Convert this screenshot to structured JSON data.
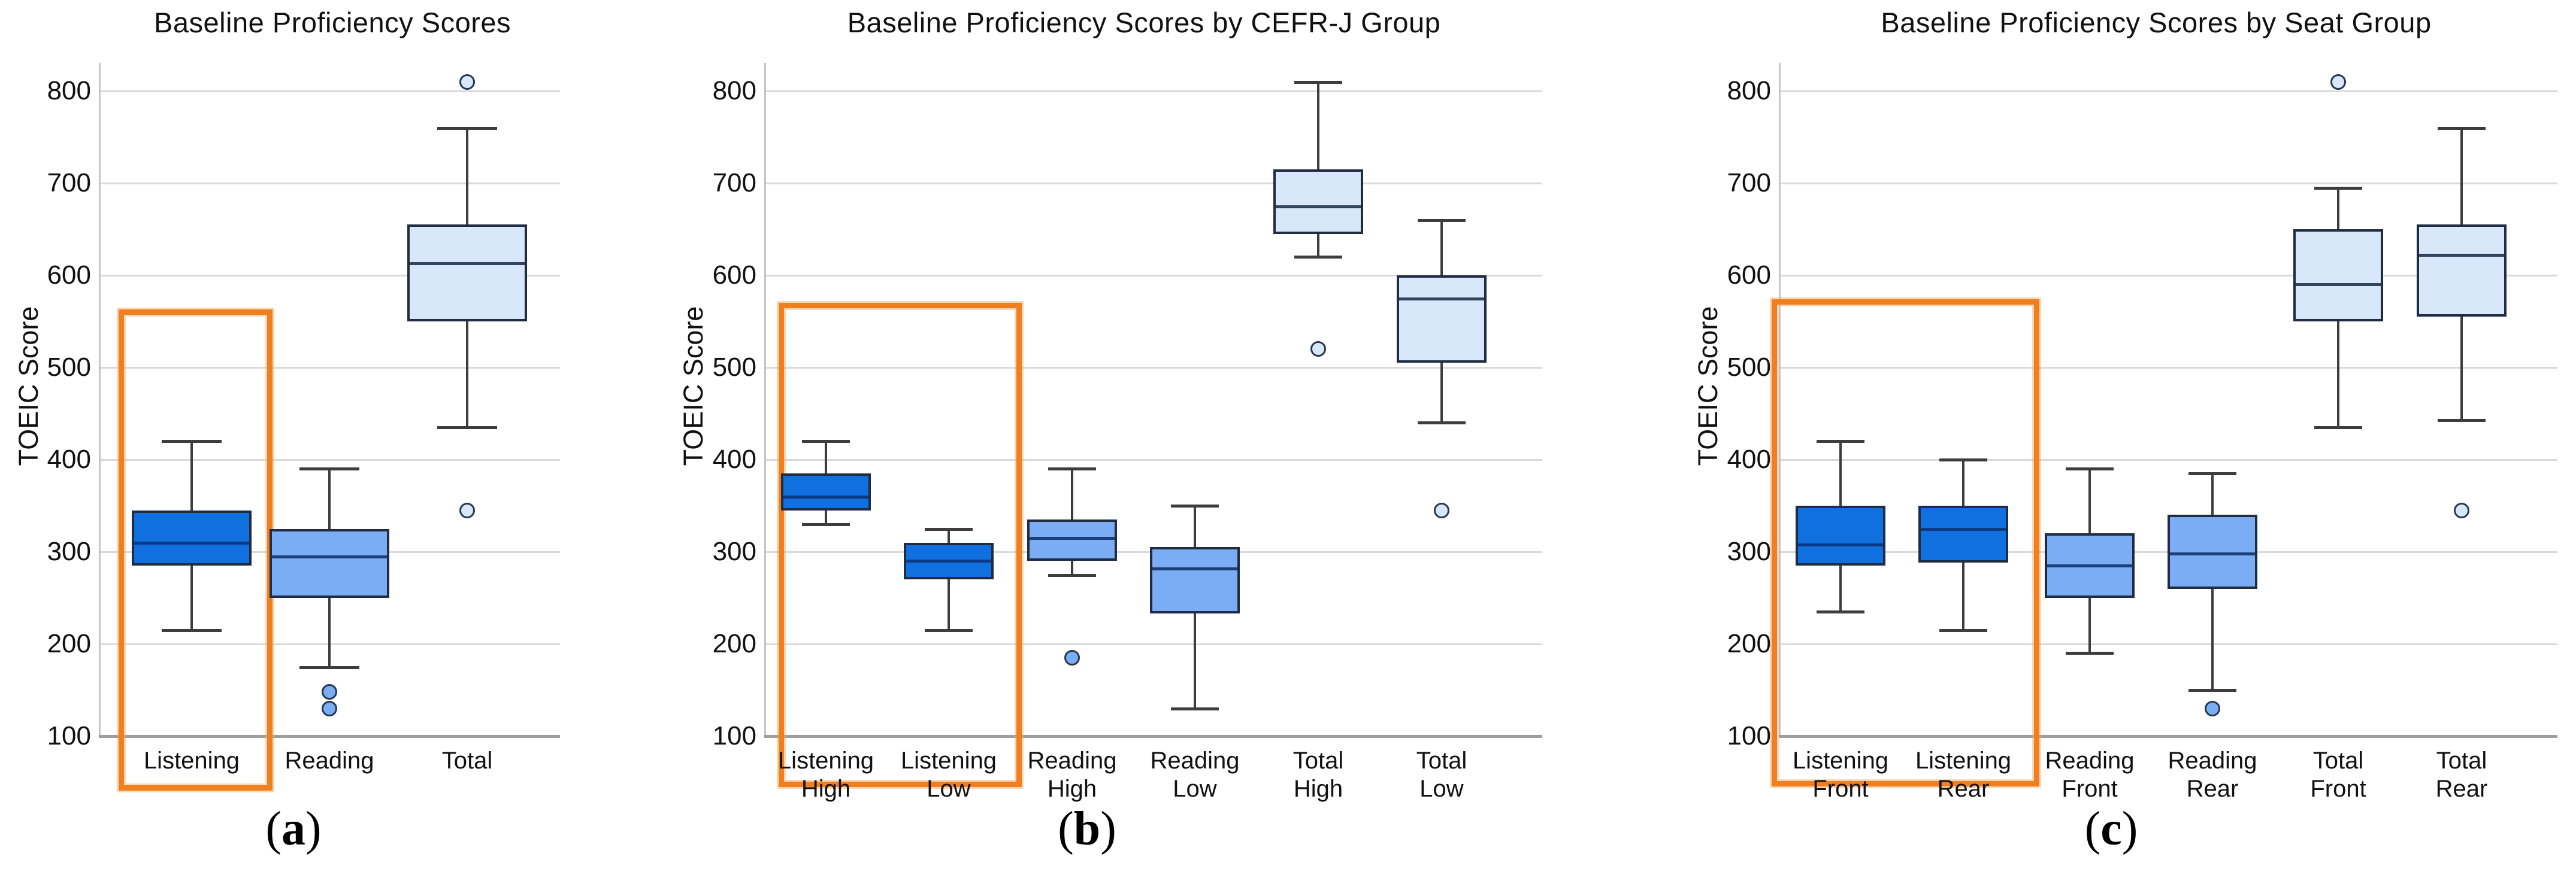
{
  "figure": {
    "background": "#ffffff",
    "colors": {
      "listening_fill": "#1070e0",
      "reading_fill": "#7aadf4",
      "total_fill": "#d8e7fa",
      "box_border": "#202c42",
      "median_listening": "#0a3a85",
      "median_reading": "#1c3f7a",
      "median_total": "#31465e",
      "whisker": "#3d3d3d",
      "gridline": "#d9d9d9",
      "axis_bottom": "#9e9e9e",
      "axis_left": "#c4c4c4",
      "highlight_orange": "#f07f1f",
      "text": "#111111"
    }
  },
  "chart_data": [
    {
      "type": "box",
      "panel": "a",
      "caption_letter": "a",
      "title": "Baseline Proficiency Scores",
      "ylabel": "TOEIC Score",
      "ylim": [
        100,
        835
      ],
      "yticks": [
        100,
        200,
        300,
        400,
        500,
        600,
        700,
        800
      ],
      "grid": true,
      "legend_position": "none",
      "categories": [
        "Listening",
        "Reading",
        "Total"
      ],
      "boxes": [
        {
          "label": "Listening",
          "label_lines": [
            "Listening"
          ],
          "group": "listening",
          "min": 215,
          "q1": 285,
          "median": 310,
          "q3": 345,
          "max": 420,
          "outliers": []
        },
        {
          "label": "Reading",
          "label_lines": [
            "Reading"
          ],
          "group": "reading",
          "min": 175,
          "q1": 250,
          "median": 295,
          "q3": 325,
          "max": 390,
          "outliers": [
            148,
            130
          ]
        },
        {
          "label": "Total",
          "label_lines": [
            "Total"
          ],
          "group": "total",
          "min": 435,
          "q1": 550,
          "median": 613,
          "q3": 655,
          "max": 760,
          "outliers": [
            810,
            345
          ]
        }
      ],
      "highlight": {
        "categories": [
          "Listening"
        ],
        "style": "orange-rectangle"
      }
    },
    {
      "type": "box",
      "panel": "b",
      "caption_letter": "b",
      "title": "Baseline Proficiency Scores by CEFR-J Group",
      "ylabel": "TOEIC Score",
      "ylim": [
        100,
        835
      ],
      "yticks": [
        100,
        200,
        300,
        400,
        500,
        600,
        700,
        800
      ],
      "grid": true,
      "legend_position": "none",
      "categories": [
        "Listening High",
        "Listening Low",
        "Reading High",
        "Reading Low",
        "Total High",
        "Total Low"
      ],
      "boxes": [
        {
          "label": "Listening High",
          "label_lines": [
            "Listening",
            "High"
          ],
          "group": "listening",
          "min": 330,
          "q1": 345,
          "median": 360,
          "q3": 385,
          "max": 420,
          "outliers": []
        },
        {
          "label": "Listening Low",
          "label_lines": [
            "Listening",
            "Low"
          ],
          "group": "listening",
          "min": 215,
          "q1": 270,
          "median": 290,
          "q3": 310,
          "max": 325,
          "outliers": []
        },
        {
          "label": "Reading High",
          "label_lines": [
            "Reading",
            "High"
          ],
          "group": "reading",
          "min": 275,
          "q1": 290,
          "median": 315,
          "q3": 335,
          "max": 390,
          "outliers": [
            185
          ]
        },
        {
          "label": "Reading Low",
          "label_lines": [
            "Reading",
            "Low"
          ],
          "group": "reading",
          "min": 130,
          "q1": 233,
          "median": 282,
          "q3": 305,
          "max": 350,
          "outliers": []
        },
        {
          "label": "Total High",
          "label_lines": [
            "Total",
            "High"
          ],
          "group": "total",
          "min": 620,
          "q1": 645,
          "median": 675,
          "q3": 715,
          "max": 810,
          "outliers": [
            520
          ]
        },
        {
          "label": "Total Low",
          "label_lines": [
            "Total",
            "Low"
          ],
          "group": "total",
          "min": 440,
          "q1": 505,
          "median": 575,
          "q3": 600,
          "max": 660,
          "outliers": [
            345
          ]
        }
      ],
      "highlight": {
        "categories": [
          "Listening High",
          "Listening Low"
        ],
        "style": "orange-rectangle"
      }
    },
    {
      "type": "box",
      "panel": "c",
      "caption_letter": "c",
      "title": "Baseline Proficiency Scores by Seat Group",
      "ylabel": "TOEIC Score",
      "ylim": [
        100,
        835
      ],
      "yticks": [
        100,
        200,
        300,
        400,
        500,
        600,
        700,
        800
      ],
      "grid": true,
      "legend_position": "none",
      "categories": [
        "Listening Front",
        "Listening Rear",
        "Reading Front",
        "Reading Rear",
        "Total Front",
        "Total Rear"
      ],
      "boxes": [
        {
          "label": "Listening Front",
          "label_lines": [
            "Listening",
            "Front"
          ],
          "group": "listening",
          "min": 235,
          "q1": 285,
          "median": 308,
          "q3": 350,
          "max": 420,
          "outliers": []
        },
        {
          "label": "Listening Rear",
          "label_lines": [
            "Listening",
            "Rear"
          ],
          "group": "listening",
          "min": 215,
          "q1": 288,
          "median": 325,
          "q3": 350,
          "max": 400,
          "outliers": []
        },
        {
          "label": "Reading Front",
          "label_lines": [
            "Reading",
            "Front"
          ],
          "group": "reading",
          "min": 190,
          "q1": 250,
          "median": 285,
          "q3": 320,
          "max": 390,
          "outliers": []
        },
        {
          "label": "Reading Rear",
          "label_lines": [
            "Reading",
            "Rear"
          ],
          "group": "reading",
          "min": 150,
          "q1": 260,
          "median": 298,
          "q3": 340,
          "max": 385,
          "outliers": [
            130
          ]
        },
        {
          "label": "Total Front",
          "label_lines": [
            "Total",
            "Front"
          ],
          "group": "total",
          "min": 435,
          "q1": 550,
          "median": 590,
          "q3": 650,
          "max": 695,
          "outliers": [
            810
          ]
        },
        {
          "label": "Total Rear",
          "label_lines": [
            "Total",
            "Rear"
          ],
          "group": "total",
          "min": 443,
          "q1": 555,
          "median": 622,
          "q3": 655,
          "max": 760,
          "outliers": [
            345
          ]
        }
      ],
      "highlight": {
        "categories": [
          "Listening Front",
          "Listening Rear"
        ],
        "style": "orange-rectangle"
      }
    }
  ]
}
